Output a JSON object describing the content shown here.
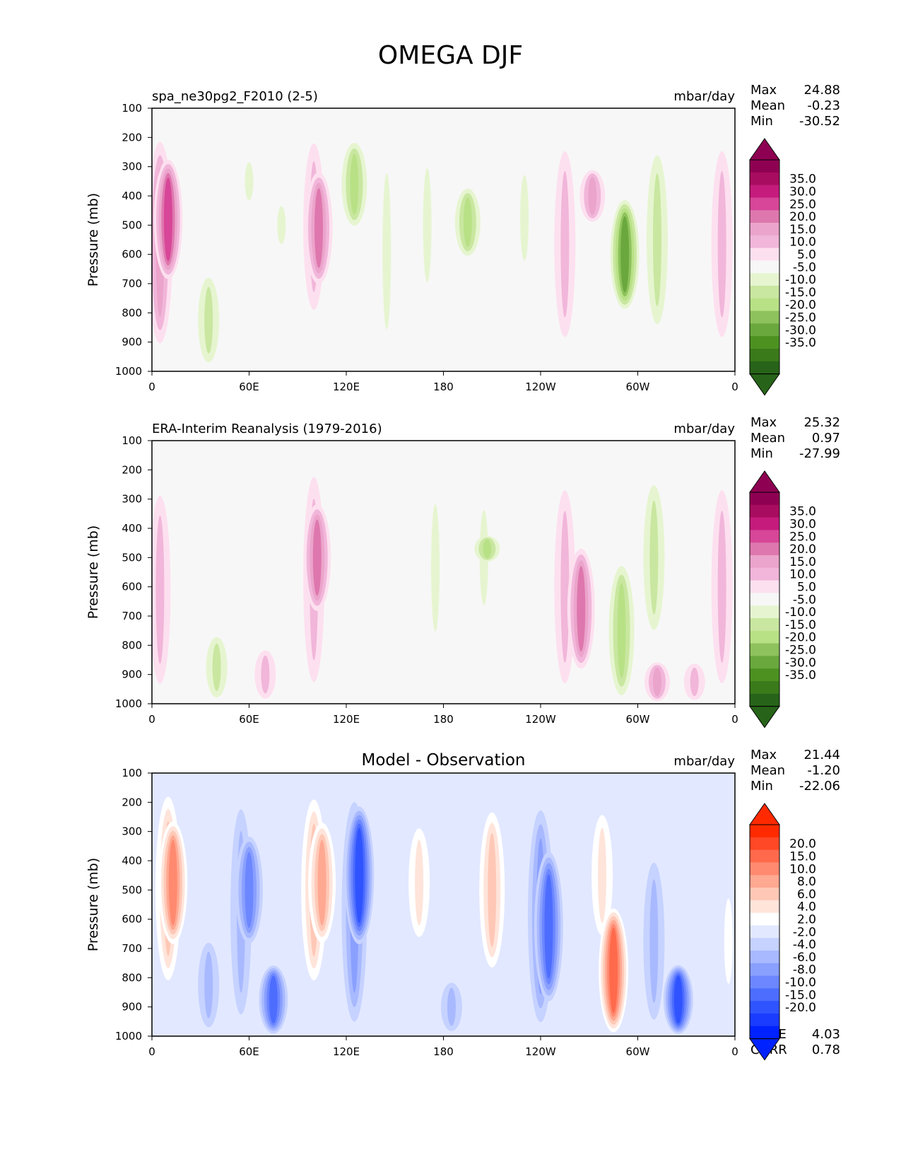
{
  "figure": {
    "title": "OMEGA DJF"
  },
  "colors": {
    "frame": "#000000",
    "plot_bg_test": "#f7f7f7",
    "plot_bg_diff": "#ffffff"
  },
  "chart_data": [
    {
      "type": "heatmap",
      "id": "test",
      "title": "spa_ne30pg2_F2010 (2-5)",
      "title_position": "left",
      "units": "mbar/day",
      "xlabel": "",
      "ylabel": "Pressure (mb)",
      "ylim": [
        1000,
        100
      ],
      "y_ticks": [
        "100",
        "200",
        "300",
        "400",
        "500",
        "600",
        "700",
        "800",
        "900",
        "1000"
      ],
      "x_ticks": [
        "0",
        "60E",
        "120E",
        "180",
        "120W",
        "60W",
        "0"
      ],
      "xlim": [
        0,
        360
      ],
      "stats": {
        "labels": [
          "Max",
          "Mean",
          "Min"
        ],
        "values": [
          "24.88",
          "-0.23",
          "-30.52"
        ]
      },
      "colorbar": {
        "labels": [
          "35.0",
          "30.0",
          "25.0",
          "20.0",
          "15.0",
          "10.0",
          "5.0",
          "-5.0",
          "-10.0",
          "-15.0",
          "-20.0",
          "-25.0",
          "-30.0",
          "-35.0"
        ],
        "colors": [
          "#8e0152",
          "#a80c60",
          "#c51b7d",
          "#d74698",
          "#de77ae",
          "#eba4cb",
          "#f1b6da",
          "#fde0ef",
          "#f7f7f7",
          "#e6f5d0",
          "#c9e7a0",
          "#b8e186",
          "#8ec25c",
          "#6aa83e",
          "#4d9221",
          "#3b7a1a",
          "#276419"
        ],
        "over_color": "#8e0152",
        "under_color": "#276419"
      },
      "features": [
        {
          "lon": 5,
          "p1": 170,
          "p2": 950,
          "v": 12
        },
        {
          "lon": 10,
          "p1": 260,
          "p2": 700,
          "v": 22
        },
        {
          "lon": 35,
          "p1": 650,
          "p2": 1000,
          "v": -7
        },
        {
          "lon": 60,
          "p1": 250,
          "p2": 450,
          "v": -6
        },
        {
          "lon": 80,
          "p1": 400,
          "p2": 600,
          "v": -6
        },
        {
          "lon": 100,
          "p1": 160,
          "p2": 850,
          "v": 10
        },
        {
          "lon": 103,
          "p1": 300,
          "p2": 720,
          "v": 18
        },
        {
          "lon": 125,
          "p1": 200,
          "p2": 520,
          "v": -12
        },
        {
          "lon": 145,
          "p1": 180,
          "p2": 1000,
          "v": -6
        },
        {
          "lon": 170,
          "p1": 200,
          "p2": 800,
          "v": -6
        },
        {
          "lon": 195,
          "p1": 360,
          "p2": 620,
          "v": -12
        },
        {
          "lon": 230,
          "p1": 250,
          "p2": 700,
          "v": -6
        },
        {
          "lon": 255,
          "p1": 180,
          "p2": 950,
          "v": 9
        },
        {
          "lon": 272,
          "p1": 300,
          "p2": 500,
          "v": 15
        },
        {
          "lon": 292,
          "p1": 400,
          "p2": 800,
          "v": -22
        },
        {
          "lon": 312,
          "p1": 200,
          "p2": 900,
          "v": -10
        },
        {
          "lon": 352,
          "p1": 180,
          "p2": 950,
          "v": 8
        }
      ]
    },
    {
      "type": "heatmap",
      "id": "ref",
      "title": "ERA-Interim Reanalysis (1979-2016)",
      "title_position": "left",
      "units": "mbar/day",
      "xlabel": "",
      "ylabel": "Pressure (mb)",
      "ylim": [
        1000,
        100
      ],
      "y_ticks": [
        "100",
        "200",
        "300",
        "400",
        "500",
        "600",
        "700",
        "800",
        "900",
        "1000"
      ],
      "x_ticks": [
        "0",
        "60E",
        "120E",
        "180",
        "120W",
        "60W",
        "0"
      ],
      "xlim": [
        0,
        360
      ],
      "stats": {
        "labels": [
          "Max",
          "Mean",
          "Min"
        ],
        "values": [
          "25.32",
          "0.97",
          "-27.99"
        ]
      },
      "colorbar": {
        "labels": [
          "35.0",
          "30.0",
          "25.0",
          "20.0",
          "15.0",
          "10.0",
          "5.0",
          "-5.0",
          "-10.0",
          "-15.0",
          "-20.0",
          "-25.0",
          "-30.0",
          "-35.0"
        ],
        "colors": [
          "#8e0152",
          "#a80c60",
          "#c51b7d",
          "#d74698",
          "#de77ae",
          "#eba4cb",
          "#f1b6da",
          "#fde0ef",
          "#f7f7f7",
          "#e6f5d0",
          "#c9e7a0",
          "#b8e186",
          "#8ec25c",
          "#6aa83e",
          "#4d9221",
          "#3b7a1a",
          "#276419"
        ],
        "over_color": "#8e0152",
        "under_color": "#276419"
      },
      "features": [
        {
          "lon": 5,
          "p1": 220,
          "p2": 1000,
          "v": 8
        },
        {
          "lon": 40,
          "p1": 750,
          "p2": 1000,
          "v": -8
        },
        {
          "lon": 70,
          "p1": 800,
          "p2": 1000,
          "v": 8
        },
        {
          "lon": 100,
          "p1": 150,
          "p2": 1000,
          "v": 8
        },
        {
          "lon": 102,
          "p1": 300,
          "p2": 700,
          "v": 16
        },
        {
          "lon": 175,
          "p1": 200,
          "p2": 870,
          "v": -6
        },
        {
          "lon": 205,
          "p1": 250,
          "p2": 750,
          "v": -6
        },
        {
          "lon": 207,
          "p1": 420,
          "p2": 520,
          "v": -12
        },
        {
          "lon": 255,
          "p1": 200,
          "p2": 1000,
          "v": 9
        },
        {
          "lon": 265,
          "p1": 450,
          "p2": 900,
          "v": 18
        },
        {
          "lon": 290,
          "p1": 500,
          "p2": 1000,
          "v": -14
        },
        {
          "lon": 310,
          "p1": 200,
          "p2": 800,
          "v": -7
        },
        {
          "lon": 312,
          "p1": 850,
          "p2": 1000,
          "v": 12
        },
        {
          "lon": 335,
          "p1": 850,
          "p2": 1000,
          "v": 8
        },
        {
          "lon": 352,
          "p1": 200,
          "p2": 1000,
          "v": 8
        }
      ]
    },
    {
      "type": "heatmap",
      "id": "diff",
      "title": "Model - Observation",
      "title_position": "center",
      "units": "mbar/day",
      "xlabel": "",
      "ylabel": "Pressure (mb)",
      "ylim": [
        1000,
        100
      ],
      "y_ticks": [
        "100",
        "200",
        "300",
        "400",
        "500",
        "600",
        "700",
        "800",
        "900",
        "1000"
      ],
      "x_ticks": [
        "0",
        "60E",
        "120E",
        "180",
        "120W",
        "60W",
        "0"
      ],
      "xlim": [
        0,
        360
      ],
      "stats": {
        "labels": [
          "Max",
          "Mean",
          "Min"
        ],
        "values": [
          "21.44",
          "-1.20",
          "-22.06"
        ]
      },
      "extra_stats": {
        "labels": [
          "RMSE",
          "CORR"
        ],
        "values": [
          "4.03",
          "0.78"
        ]
      },
      "colorbar": {
        "labels": [
          "20.0",
          "15.0",
          "10.0",
          "8.0",
          "6.0",
          "4.0",
          "2.0",
          "-2.0",
          "-4.0",
          "-6.0",
          "-8.0",
          "-10.0",
          "-15.0",
          "-20.0"
        ],
        "colors": [
          "#ff2a00",
          "#ff4826",
          "#ff6a4c",
          "#ff8a70",
          "#ffa892",
          "#ffc8b6",
          "#ffe4da",
          "#ffffff",
          "#e2e8ff",
          "#c6d2ff",
          "#a8b9ff",
          "#8aa0ff",
          "#6c87ff",
          "#4d6dff",
          "#2f54ff",
          "#1a3cff",
          "#0022ff"
        ],
        "over_color": "#ff2a00",
        "under_color": "#0022ff"
      },
      "features": [
        {
          "lon": 10,
          "p1": 140,
          "p2": 850,
          "v": 8
        },
        {
          "lon": 13,
          "p1": 250,
          "p2": 700,
          "v": 12
        },
        {
          "lon": 35,
          "p1": 650,
          "p2": 1000,
          "v": -5
        },
        {
          "lon": 55,
          "p1": 150,
          "p2": 1000,
          "v": -6
        },
        {
          "lon": 60,
          "p1": 300,
          "p2": 700,
          "v": -9
        },
        {
          "lon": 75,
          "p1": 750,
          "p2": 1000,
          "v": -12
        },
        {
          "lon": 100,
          "p1": 150,
          "p2": 850,
          "v": 7
        },
        {
          "lon": 105,
          "p1": 250,
          "p2": 700,
          "v": 11
        },
        {
          "lon": 125,
          "p1": 150,
          "p2": 1000,
          "v": -8
        },
        {
          "lon": 128,
          "p1": 200,
          "p2": 700,
          "v": -14
        },
        {
          "lon": 165,
          "p1": 250,
          "p2": 700,
          "v": 4
        },
        {
          "lon": 185,
          "p1": 800,
          "p2": 1000,
          "v": -4
        },
        {
          "lon": 210,
          "p1": 200,
          "p2": 800,
          "v": 7
        },
        {
          "lon": 240,
          "p1": 180,
          "p2": 1000,
          "v": -8
        },
        {
          "lon": 245,
          "p1": 350,
          "p2": 900,
          "v": -12
        },
        {
          "lon": 278,
          "p1": 200,
          "p2": 700,
          "v": 5
        },
        {
          "lon": 285,
          "p1": 550,
          "p2": 1000,
          "v": 16
        },
        {
          "lon": 310,
          "p1": 350,
          "p2": 1000,
          "v": -6
        },
        {
          "lon": 325,
          "p1": 750,
          "p2": 1000,
          "v": -14
        },
        {
          "lon": 356,
          "p1": 450,
          "p2": 900,
          "v": 3
        }
      ]
    }
  ]
}
